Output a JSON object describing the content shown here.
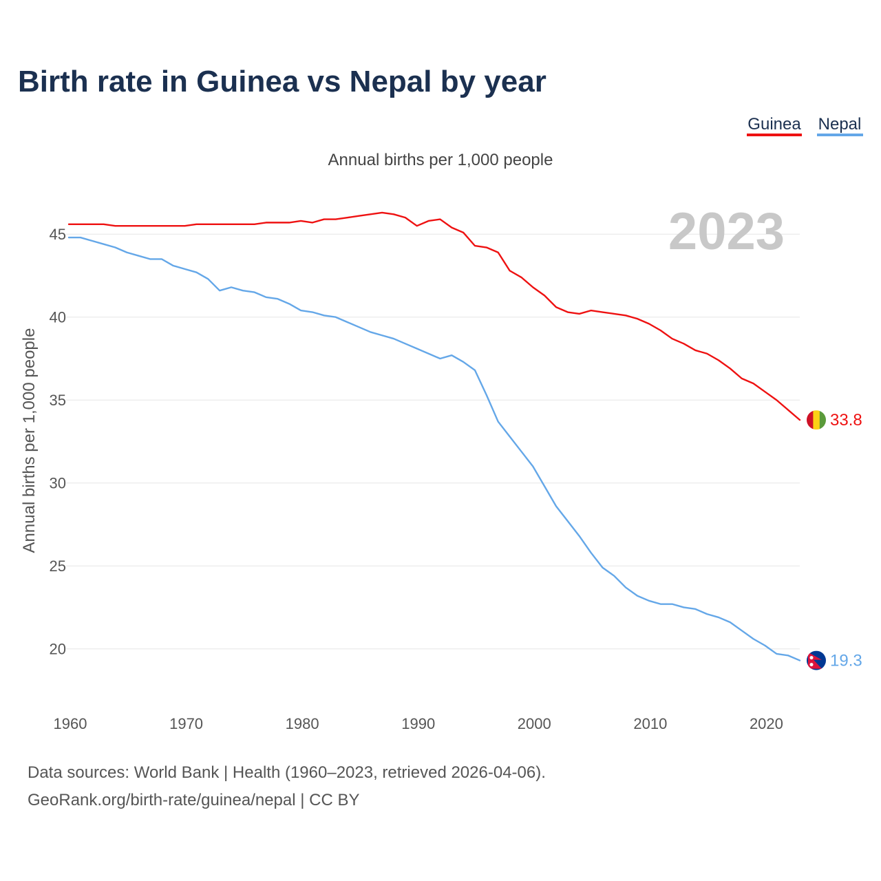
{
  "chart_data": {
    "type": "line",
    "title": "Birth rate in Guinea vs Nepal by year",
    "subtitle": "Annual births per 1,000 people",
    "ylabel": "Annual births per 1,000 people",
    "xlabel": "",
    "current_year": "2023",
    "xlim": [
      1960,
      2023
    ],
    "ylim": [
      17,
      47.5
    ],
    "x_ticks": [
      1960,
      1970,
      1980,
      1990,
      2000,
      2010,
      2020
    ],
    "y_ticks": [
      20,
      25,
      30,
      35,
      40,
      45
    ],
    "legend_position": "top-right",
    "x": [
      1960,
      1961,
      1962,
      1963,
      1964,
      1965,
      1966,
      1967,
      1968,
      1969,
      1970,
      1971,
      1972,
      1973,
      1974,
      1975,
      1976,
      1977,
      1978,
      1979,
      1980,
      1981,
      1982,
      1983,
      1984,
      1985,
      1986,
      1987,
      1988,
      1989,
      1990,
      1991,
      1992,
      1993,
      1994,
      1995,
      1996,
      1997,
      1998,
      1999,
      2000,
      2001,
      2002,
      2003,
      2004,
      2005,
      2006,
      2007,
      2008,
      2009,
      2010,
      2011,
      2012,
      2013,
      2014,
      2015,
      2016,
      2017,
      2018,
      2019,
      2020,
      2021,
      2022,
      2023
    ],
    "series": [
      {
        "name": "Guinea",
        "color": "#ee1111",
        "end_label": "33.8",
        "flag": "guinea-flag",
        "values": [
          45.6,
          45.6,
          45.6,
          45.6,
          45.5,
          45.5,
          45.5,
          45.5,
          45.5,
          45.5,
          45.5,
          45.6,
          45.6,
          45.6,
          45.6,
          45.6,
          45.6,
          45.7,
          45.7,
          45.7,
          45.8,
          45.7,
          45.9,
          45.9,
          46.0,
          46.1,
          46.2,
          46.3,
          46.2,
          46.0,
          45.5,
          45.8,
          45.9,
          45.4,
          45.1,
          44.3,
          44.2,
          43.9,
          42.8,
          42.4,
          41.8,
          41.3,
          40.6,
          40.3,
          40.2,
          40.4,
          40.3,
          40.2,
          40.1,
          39.9,
          39.6,
          39.2,
          38.7,
          38.4,
          38.0,
          37.8,
          37.4,
          36.9,
          36.3,
          36.0,
          35.5,
          35.0,
          34.4,
          33.8
        ]
      },
      {
        "name": "Nepal",
        "color": "#64a7e8",
        "end_label": "19.3",
        "flag": "nepal-flag",
        "values": [
          44.8,
          44.8,
          44.6,
          44.4,
          44.2,
          43.9,
          43.7,
          43.5,
          43.5,
          43.1,
          42.9,
          42.7,
          42.3,
          41.6,
          41.8,
          41.6,
          41.5,
          41.2,
          41.1,
          40.8,
          40.4,
          40.3,
          40.1,
          40.0,
          39.7,
          39.4,
          39.1,
          38.9,
          38.7,
          38.4,
          38.1,
          37.8,
          37.5,
          37.7,
          37.3,
          36.8,
          35.3,
          33.7,
          32.8,
          31.9,
          31.0,
          29.8,
          28.6,
          27.7,
          26.8,
          25.8,
          24.9,
          24.4,
          23.7,
          23.2,
          22.9,
          22.7,
          22.7,
          22.5,
          22.4,
          22.1,
          21.9,
          21.6,
          21.1,
          20.6,
          20.2,
          19.7,
          19.6,
          19.3
        ]
      }
    ]
  },
  "legend": {
    "items": [
      {
        "label": "Guinea",
        "color": "#ee1111"
      },
      {
        "label": "Nepal",
        "color": "#64a7e8"
      }
    ]
  },
  "source": {
    "line1": "Data sources: World Bank | Health (1960–2023, retrieved 2026-04-06).",
    "line2": "GeoRank.org/birth-rate/guinea/nepal | CC BY"
  }
}
